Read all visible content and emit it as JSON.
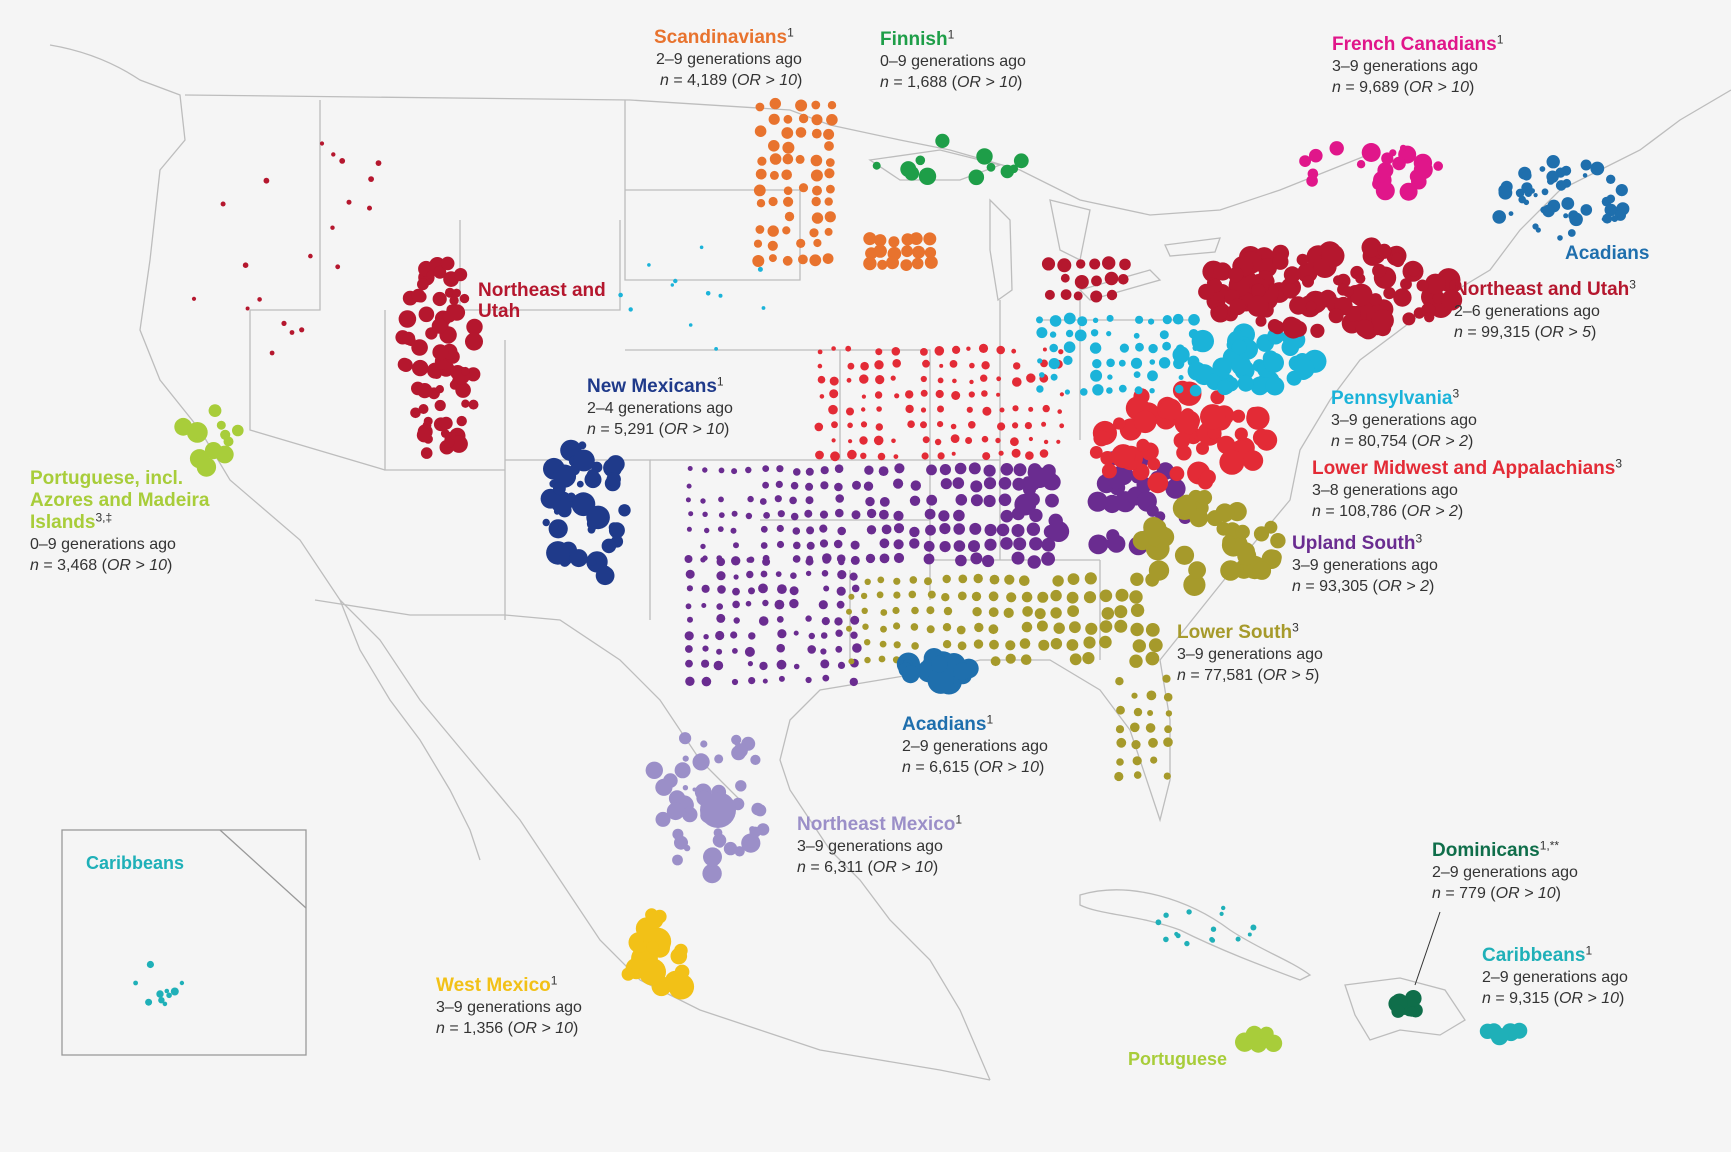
{
  "map": {
    "inset_title": "Caribbeans",
    "colors": {
      "background": "#f5f5f5",
      "boundary": "#bdbdbd",
      "scandinavians": "#e8732e",
      "finnish": "#1e9e48",
      "french_canadians": "#e0168a",
      "acadians": "#1f6fad",
      "northeast_utah": "#b5172e",
      "pennsylvania": "#1bb3d9",
      "lower_midwest": "#e32b36",
      "upland_south": "#6a2c90",
      "lower_south": "#a69a2b",
      "new_mexicans": "#1f3a8a",
      "portuguese": "#a8cd3a",
      "northeast_mexico": "#9b8fc8",
      "west_mexico": "#f2c117",
      "dominicans": "#0f6e4a",
      "caribbeans": "#1fb0b8"
    },
    "labels": [
      {
        "id": "scandinavians",
        "name": "Scandinavians",
        "sup": "1",
        "gen": "2–9 generations ago",
        "n_value": "4,189",
        "or": "OR > 10",
        "color": "#e8732e"
      },
      {
        "id": "finnish",
        "name": "Finnish",
        "sup": "1",
        "gen": "0–9 generations ago",
        "n_value": "1,688",
        "or": "OR > 10",
        "color": "#1e9e48"
      },
      {
        "id": "french_canadians",
        "name": "French Canadians",
        "sup": "1",
        "gen": "3–9 generations ago",
        "n_value": "9,689",
        "or": "OR > 10",
        "color": "#e0168a"
      },
      {
        "id": "northeast_utah",
        "name": "Northeast and Utah",
        "sup": "3",
        "gen": "2–6 generations ago",
        "n_value": "99,315",
        "or": "OR > 5",
        "color": "#b5172e"
      },
      {
        "id": "pennsylvania",
        "name": "Pennsylvania",
        "sup": "3",
        "gen": "3–9 generations ago",
        "n_value": "80,754",
        "or": "OR > 2",
        "color": "#1bb3d9"
      },
      {
        "id": "lower_midwest",
        "name": "Lower Midwest and Appalachians",
        "sup": "3",
        "gen": "3–8 generations ago",
        "n_value": "108,786",
        "or": "OR > 2",
        "color": "#e32b36"
      },
      {
        "id": "upland_south",
        "name": "Upland South",
        "sup": "3",
        "gen": "3–9 generations ago",
        "n_value": "93,305",
        "or": "OR > 2",
        "color": "#6a2c90"
      },
      {
        "id": "lower_south",
        "name": "Lower South",
        "sup": "3",
        "gen": "3–9 generations ago",
        "n_value": "77,581",
        "or": "OR > 5",
        "color": "#a69a2b"
      },
      {
        "id": "new_mexicans",
        "name": "New Mexicans",
        "sup": "1",
        "gen": "2–4 generations ago",
        "n_value": "5,291",
        "or": "OR > 10",
        "color": "#1f3a8a"
      },
      {
        "id": "portuguese",
        "name": "Portuguese, incl. Azores and Madeira Islands",
        "sup": "3,‡",
        "gen": "0–9 generations ago",
        "n_value": "3,468",
        "or": "OR > 10",
        "color": "#a8cd3a"
      },
      {
        "id": "acadians_south",
        "name": "Acadians",
        "sup": "1",
        "gen": "2–9 generations ago",
        "n_value": "6,615",
        "or": "OR > 10",
        "color": "#1f6fad"
      },
      {
        "id": "northeast_mexico",
        "name": "Northeast Mexico",
        "sup": "1",
        "gen": "3–9 generations ago",
        "n_value": "6,311",
        "or": "OR > 10",
        "color": "#9b8fc8"
      },
      {
        "id": "west_mexico",
        "name": "West Mexico",
        "sup": "1",
        "gen": "3–9 generations ago",
        "n_value": "1,356",
        "or": "OR > 10",
        "color": "#f2c117"
      },
      {
        "id": "dominicans",
        "name": "Dominicans",
        "sup": "1,**",
        "gen": "2–9 generations ago",
        "n_value": "779",
        "or": "OR > 10",
        "color": "#0f6e4a"
      },
      {
        "id": "caribbeans",
        "name": "Caribbeans",
        "sup": "1",
        "gen": "2–9 generations ago",
        "n_value": "9,315",
        "or": "OR > 10",
        "color": "#1fb0b8"
      }
    ],
    "plain_labels": [
      {
        "id": "northeast_utah_west",
        "text": "Northeast and Utah",
        "color": "#b5172e"
      },
      {
        "id": "acadians_north",
        "text": "Acadians",
        "color": "#1f6fad"
      },
      {
        "id": "portuguese_atlantic",
        "text": "Portuguese",
        "color": "#a8cd3a"
      }
    ]
  }
}
